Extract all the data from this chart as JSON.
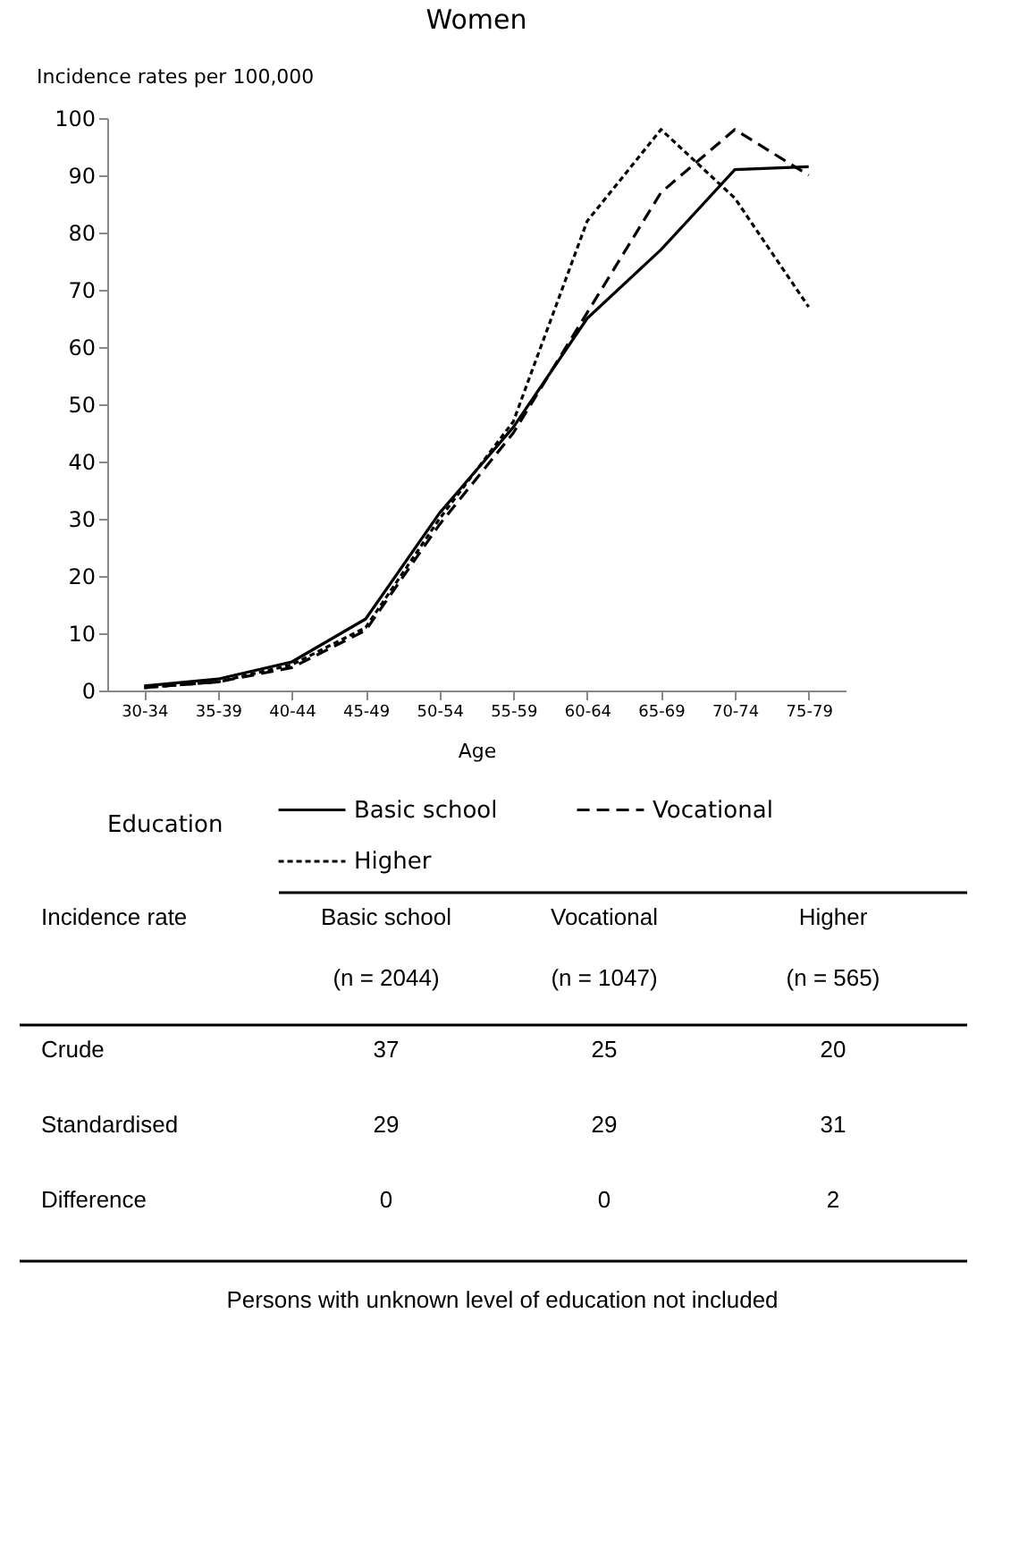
{
  "chart_data": [
    {
      "type": "line",
      "title": "Women",
      "xlabel": "Age",
      "ylabel": "Incidence rates per 100,000",
      "legend_title": "Education",
      "categories": [
        "30-34",
        "35-39",
        "40-44",
        "45-49",
        "50-54",
        "55-59",
        "60-64",
        "65-69",
        "70-74",
        "75-79"
      ],
      "series": [
        {
          "name": "Basic school",
          "color": "#000000",
          "line_style": "solid",
          "values": [
            0.8,
            2,
            5,
            12.5,
            31,
            46,
            65,
            77,
            91,
            91.5
          ]
        },
        {
          "name": "Vocational",
          "color": "#000000",
          "line_style": "dashed",
          "values": [
            0.5,
            1.5,
            4,
            10.5,
            29,
            45,
            66,
            87,
            98,
            90
          ]
        },
        {
          "name": "Higher",
          "color": "#000000",
          "line_style": "dotted",
          "values": [
            0.5,
            1.5,
            4.5,
            11,
            30,
            47,
            82,
            98,
            86,
            67
          ]
        }
      ],
      "ylim": [
        0,
        100
      ],
      "yticks": [
        0,
        10,
        20,
        30,
        40,
        50,
        60,
        70,
        80,
        90,
        100
      ],
      "grid": false,
      "legend": "bottom",
      "marker": "none"
    },
    {
      "type": "other",
      "annotations": [
        "Incidence rate",
        "Basic school\n(n = 2044)",
        "Vocational\n(n = 1047)",
        "Higher\n(n = 565)",
        "Crude",
        "37",
        "25",
        "20",
        "Standardised",
        "29",
        "29",
        "31",
        "Difference",
        "0",
        "0",
        "2",
        "Persons with unknown level of education not included"
      ]
    }
  ]
}
